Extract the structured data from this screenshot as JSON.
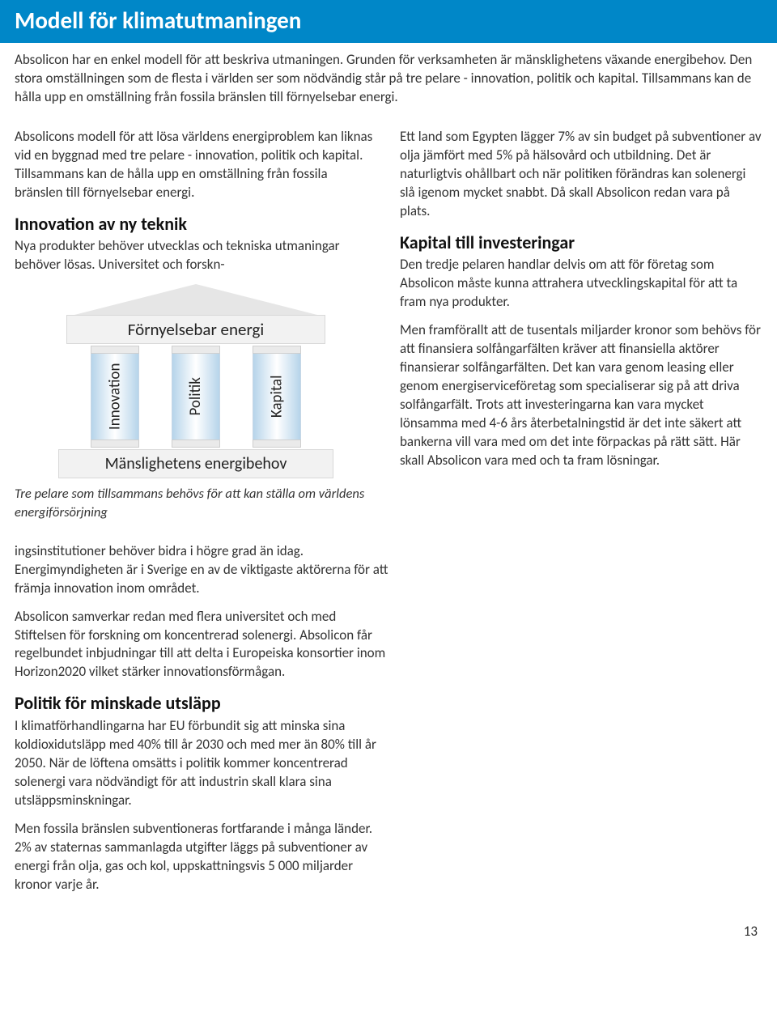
{
  "title": "Modell för klimatutmaningen",
  "intro": "Absolicon har en enkel modell för att beskriva utmaningen. Grunden för verksamheten är mänsklighetens växande energibehov. Den stora omställningen som de flesta i världen ser som nödvändig står på tre pelare - innovation, politik och kapital. Tillsammans kan de hålla upp en omställning från fossila bränslen till förnyelsebar energi.",
  "left": {
    "p1": "Absolicons modell för att lösa världens energiproblem  kan liknas vid en byggnad med tre pelare - innovation, politik och kapital. Tillsammans kan de hålla upp en omställning från fossila bränslen till förnyelsebar energi.",
    "h_innovation": "Innovation av ny teknik",
    "p_innovation": "Nya produkter behöver utvecklas och tekniska utmaningar behöver lösas. Universitet och forskn-",
    "caption": "Tre pelare som tillsammans behövs för att kan ställa om världens energiförsörjning"
  },
  "diagram": {
    "roof_label": "Förnyelsebar energi",
    "pillars": [
      "Innovation",
      "Politik",
      "Kapital"
    ],
    "base_label": "Mänslighetens energibehov"
  },
  "right": {
    "p1": "Ett land som Egypten lägger 7% av sin budget på subventioner av olja jämfört med 5% på hälsovård och utbildning. Det är naturligtvis ohållbart och när politiken förändras kan solenergi slå igenom mycket snabbt. Då skall Absolicon redan vara på plats.",
    "h_kapital": "Kapital till investeringar",
    "p_kapital1": "Den tredje pelaren handlar delvis om att för företag som Absolicon måste kunna attrahera utvecklingskapital för att ta fram nya produkter.",
    "p_kapital2": "Men framförallt att de tusentals miljarder kronor som behövs för att finansiera solfångarfälten kräver att finansiella aktörer finansierar solfångarfälten. Det kan vara genom leasing eller genom energiserviceföretag som specialiserar sig på att driva solfångarfält. Trots att investeringarna kan vara mycket lönsamma med 4-6 års återbetalningstid är det inte säkert att bankerna vill vara med om det inte förpackas på rätt sätt. Här skall Absolicon vara med och ta fram lösningar."
  },
  "after": {
    "p_cont1": "ingsinstitutioner behöver bidra i högre grad än idag. Energimyndigheten är i Sverige en av de viktigaste aktörerna för att främja innovation inom området.",
    "p_cont2": "Absolicon samverkar redan med flera universitet och med Stiftelsen för forskning om koncentrerad solenergi. Absolicon får regelbundet inbjudningar till att delta i Europeiska konsortier inom Horizon2020 vilket stärker innovationsförmågan.",
    "h_politik": "Politik för minskade utsläpp",
    "p_politik1": "I klimatförhandlingarna har EU förbundit sig att minska sina koldioxidutsläpp med 40% till år 2030 och med mer än 80% till år 2050. När de löftena omsätts i politik kommer koncentrerad solenergi vara nödvändigt för att industrin skall klara sina utsläppsminskningar.",
    "p_politik2": "Men fossila bränslen subventioneras fortfarande i många länder. 2% av staternas sammanlagda utgifter läggs på subventioner av energi från olja, gas och kol, uppskattningsvis 5 000 miljarder kronor varje år."
  },
  "page_number": "13",
  "colors": {
    "title_bg": "#0087c8",
    "title_fg": "#ffffff",
    "text": "#333333"
  }
}
